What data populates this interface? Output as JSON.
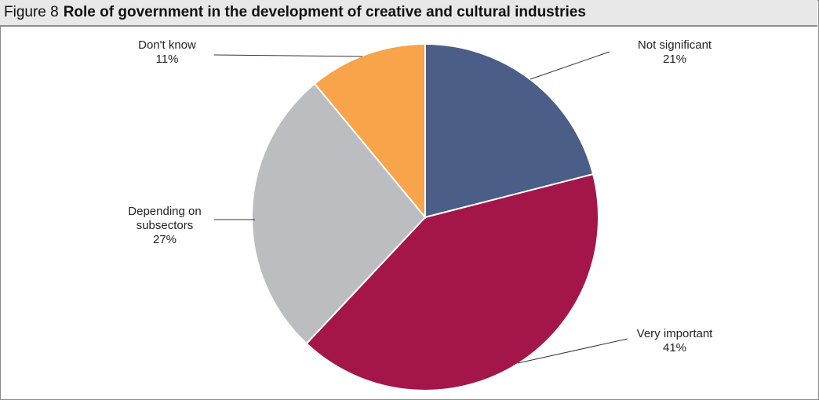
{
  "figure": {
    "label": "Figure 8",
    "title": "Role of government in the development of creative and cultural industries"
  },
  "chart_data": {
    "type": "pie",
    "title": "Role of government in the development of creative and cultural industries",
    "slices": [
      {
        "label": [
          "Not significant"
        ],
        "percent_label": "21%",
        "value": 21,
        "color": "#4a5e87"
      },
      {
        "label": [
          "Very important"
        ],
        "percent_label": "41%",
        "value": 41,
        "color": "#a4164a"
      },
      {
        "label": [
          "Depending on",
          "subsectors"
        ],
        "percent_label": "27%",
        "value": 27,
        "color": "#bcbdc0"
      },
      {
        "label": [
          "Don't know"
        ],
        "percent_label": "11%",
        "value": 11,
        "color": "#f7a44a"
      }
    ],
    "start": "12 o'clock",
    "direction": "clockwise"
  }
}
